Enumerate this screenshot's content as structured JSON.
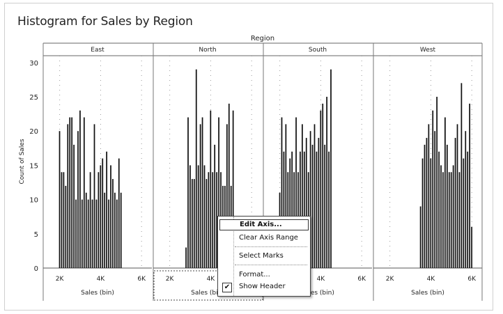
{
  "title": "Histogram for Sales by Region",
  "chart_data": {
    "type": "bar",
    "title": "Histogram for Sales by Region",
    "column_header": "Region",
    "ylabel": "Count of Sales",
    "xlabel": "Sales (bin)",
    "ylim": [
      0,
      31
    ],
    "y_ticks": [
      0,
      5,
      10,
      15,
      20,
      25,
      30
    ],
    "x_ticks": [
      {
        "label": "2K",
        "value": 2000
      },
      {
        "label": "4K",
        "value": 4000
      },
      {
        "label": "6K",
        "value": 6000
      }
    ],
    "xlim": [
      1400,
      6300
    ],
    "bin_width": 100,
    "grid": true,
    "panels": [
      {
        "name": "East",
        "bins": [
          2000,
          2100,
          2200,
          2300,
          2400,
          2500,
          2600,
          2700,
          2800,
          2900,
          3000,
          3100,
          3200,
          3300,
          3400,
          3500,
          3600,
          3700,
          3800,
          3900,
          4000,
          4100,
          4200,
          4300,
          4400,
          4500,
          4600,
          4700,
          4800,
          4900,
          5000
        ],
        "values": [
          20,
          14,
          14,
          12,
          21,
          22,
          22,
          18,
          10,
          20,
          23,
          10,
          22,
          11,
          10,
          14,
          10,
          21,
          10,
          14,
          15,
          16,
          11,
          17,
          10,
          15,
          13,
          11,
          10,
          16,
          11
        ]
      },
      {
        "name": "North",
        "bins": [
          2800,
          2900,
          3000,
          3100,
          3200,
          3300,
          3400,
          3500,
          3600,
          3700,
          3800,
          3900,
          4000,
          4100,
          4200,
          4300,
          4400,
          4500,
          4600,
          4700,
          4800,
          4900,
          5000,
          5100
        ],
        "values": [
          3,
          22,
          15,
          13,
          13,
          29,
          15,
          21,
          22,
          15,
          13,
          14,
          23,
          14,
          18,
          14,
          22,
          14,
          12,
          12,
          21,
          24,
          12,
          23
        ]
      },
      {
        "name": "South",
        "bins": [
          2000,
          2100,
          2200,
          2300,
          2400,
          2500,
          2600,
          2700,
          2800,
          2900,
          3000,
          3100,
          3200,
          3300,
          3400,
          3500,
          3600,
          3700,
          3800,
          3900,
          4000,
          4100,
          4200,
          4300,
          4400,
          4500
        ],
        "values": [
          11,
          22,
          17,
          21,
          14,
          16,
          17,
          14,
          22,
          14,
          17,
          21,
          17,
          19,
          14,
          20,
          18,
          21,
          17,
          19,
          23,
          24,
          18,
          25,
          17,
          29
        ]
      },
      {
        "name": "West",
        "bins": [
          3500,
          3600,
          3700,
          3800,
          3900,
          4000,
          4100,
          4200,
          4300,
          4400,
          4500,
          4600,
          4700,
          4800,
          4900,
          5000,
          5100,
          5200,
          5300,
          5400,
          5500,
          5600,
          5700,
          5800,
          5900,
          6000
        ],
        "values": [
          9,
          16,
          18,
          19,
          21,
          16,
          23,
          20,
          25,
          17,
          15,
          14,
          22,
          18,
          14,
          14,
          15,
          19,
          21,
          14,
          27,
          16,
          20,
          17,
          24,
          6
        ]
      }
    ]
  },
  "context_menu": {
    "items": [
      {
        "label": "Edit Axis...",
        "highlighted": true,
        "checked": false
      },
      {
        "label": "Clear Axis Range",
        "highlighted": false,
        "checked": false
      },
      {
        "label": "Select Marks",
        "highlighted": false,
        "checked": false
      },
      {
        "label": "Format...",
        "highlighted": false,
        "checked": false
      },
      {
        "label": "Show Header",
        "highlighted": false,
        "checked": true
      }
    ],
    "check_glyph": "✔"
  }
}
